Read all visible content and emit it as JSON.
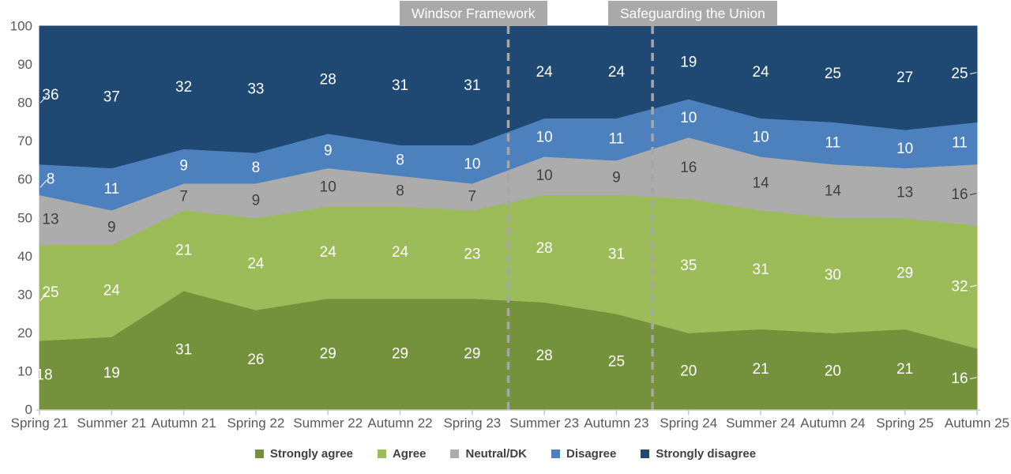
{
  "annotations": [
    {
      "label": "Windsor Framework",
      "between_categories": [
        "Spring 23",
        "Summer 23"
      ]
    },
    {
      "label": "Safeguarding the Union",
      "between_categories": [
        "Autumn 23",
        "Spring 24"
      ]
    }
  ],
  "chart_data": {
    "type": "area",
    "stacked": true,
    "title": "",
    "xlabel": "",
    "ylabel": "",
    "ylim": [
      0,
      100
    ],
    "yticks": [
      0,
      10,
      20,
      30,
      40,
      50,
      60,
      70,
      80,
      90,
      100
    ],
    "grid": false,
    "legend_position": "bottom",
    "categories": [
      "Spring 21",
      "Summer 21",
      "Autumn 21",
      "Spring 22",
      "Summer 22",
      "Autumn 22",
      "Spring 23",
      "Summer 23",
      "Autumn 23",
      "Spring 24",
      "Summer 24",
      "Autumn 24",
      "Spring 25",
      "Autumn 25"
    ],
    "series": [
      {
        "name": "Strongly agree",
        "color": "#74923B",
        "label_color": "#FFFFFF",
        "values": [
          18,
          19,
          31,
          26,
          29,
          29,
          29,
          28,
          25,
          20,
          21,
          20,
          21,
          16
        ]
      },
      {
        "name": "Agree",
        "color": "#9CBB59",
        "label_color": "#FFFFFF",
        "values": [
          25,
          24,
          21,
          24,
          24,
          24,
          23,
          28,
          31,
          35,
          31,
          30,
          29,
          32
        ]
      },
      {
        "name": "Neutral/DK",
        "color": "#ACACAC",
        "label_color": "#404040",
        "values": [
          13,
          9,
          7,
          9,
          10,
          8,
          7,
          10,
          9,
          16,
          14,
          14,
          13,
          16
        ]
      },
      {
        "name": "Disagree",
        "color": "#4C81BE",
        "label_color": "#FFFFFF",
        "values": [
          8,
          11,
          9,
          8,
          9,
          8,
          10,
          10,
          11,
          10,
          10,
          11,
          10,
          11
        ]
      },
      {
        "name": "Strongly disagree",
        "color": "#1F4873",
        "label_color": "#FFFFFF",
        "values": [
          36,
          37,
          32,
          33,
          28,
          31,
          31,
          24,
          24,
          19,
          24,
          25,
          27,
          25
        ]
      }
    ],
    "annotation_line_color": "#A6A6A6",
    "axis_text_color": "#595959",
    "axis_line_color": "#C9C9C9"
  }
}
